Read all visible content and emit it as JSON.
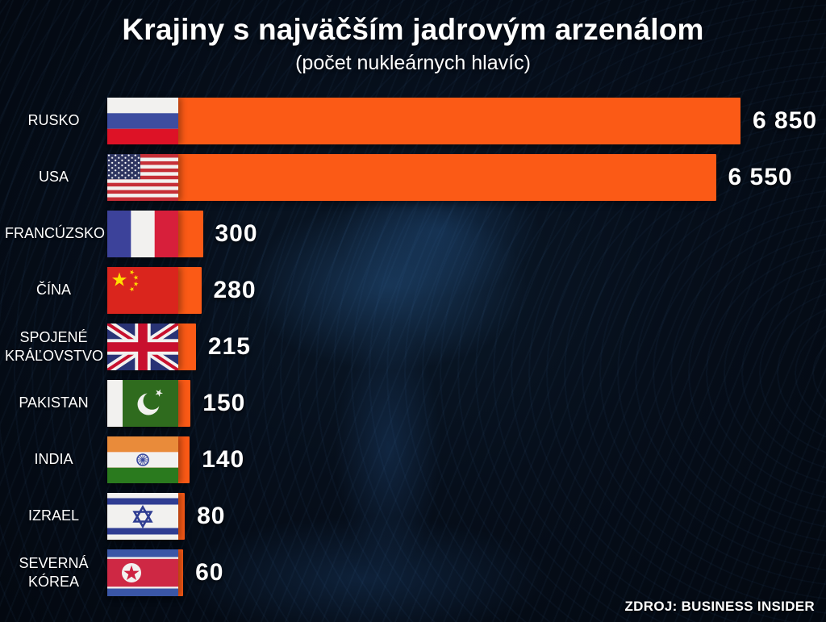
{
  "header": {
    "title": "Krajiny s najväčším jadrovým arzenálom",
    "subtitle": "(počet nukleárnych hlavíc)"
  },
  "source": "ZDROJ: BUSINESS INSIDER",
  "colors": {
    "bar": "#fb5a16",
    "background": "#050b14",
    "text": "#ffffff"
  },
  "chart_data": {
    "type": "bar",
    "orientation": "horizontal",
    "title": "Krajiny s najväčším jadrovým arzenálom",
    "subtitle": "(počet nukleárnych hlavíc)",
    "categories": [
      "RUSKO",
      "USA",
      "FRANCÚZSKO",
      "ČÍNA",
      "SPOJENÉ KRÁĽOVSTVO",
      "PAKISTAN",
      "INDIA",
      "IZRAEL",
      "SEVERNÁ KÓREA"
    ],
    "values": [
      6850,
      6550,
      300,
      280,
      215,
      150,
      140,
      80,
      60
    ],
    "value_labels": [
      "6 850",
      "6 550",
      "300",
      "280",
      "215",
      "150",
      "140",
      "80",
      "60"
    ],
    "flags": [
      "russia",
      "usa",
      "france",
      "china",
      "united-kingdom",
      "pakistan",
      "india",
      "israel",
      "north-korea"
    ],
    "xlim": [
      0,
      6850
    ],
    "bar_color": "#fb5a16",
    "grid": false,
    "legend": false,
    "source": "ZDROJ: BUSINESS INSIDER"
  }
}
